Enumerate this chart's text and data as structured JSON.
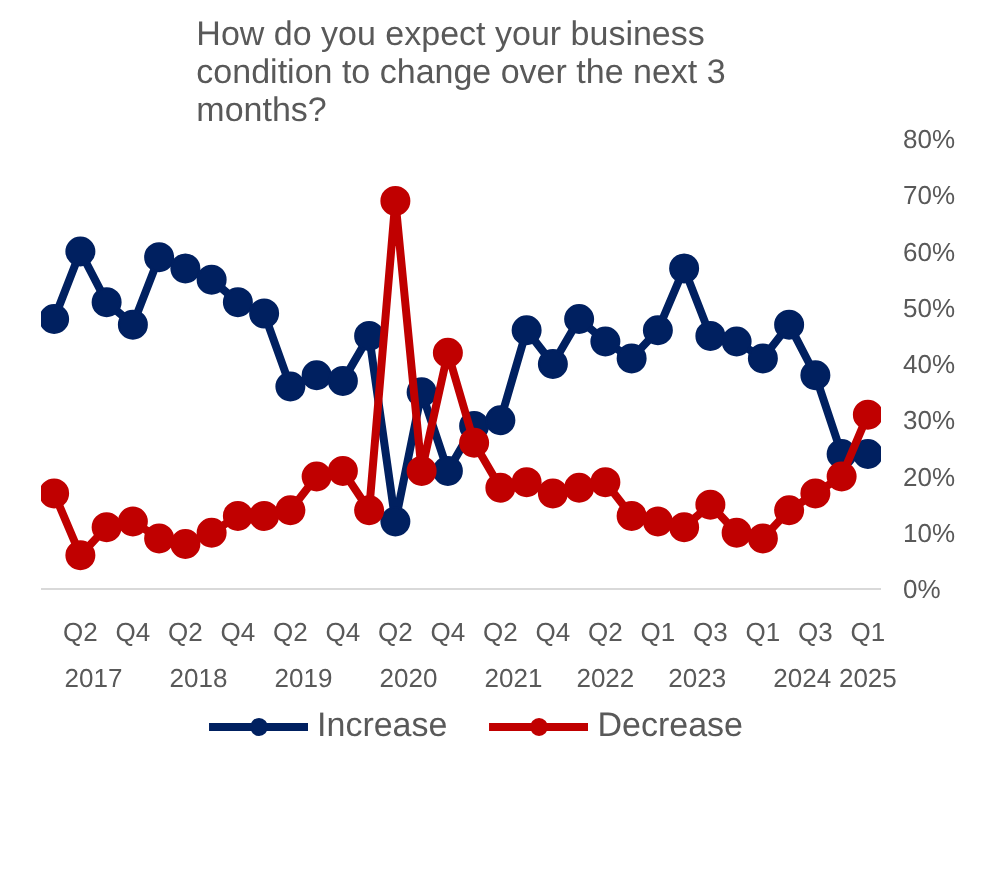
{
  "chart_data": {
    "type": "line",
    "title": "How do you expect your business condition to change over the next 3 months?",
    "categories": [
      null,
      "Q2",
      null,
      "Q4",
      null,
      "Q2",
      null,
      "Q4",
      null,
      "Q2",
      null,
      "Q4",
      null,
      "Q2",
      null,
      "Q4",
      null,
      "Q2",
      null,
      "Q4",
      null,
      "Q2",
      null,
      "Q1",
      null,
      "Q3",
      null,
      "Q1",
      null,
      "Q3",
      null,
      "Q1"
    ],
    "annotations": [
      "2017",
      "2018",
      "2019",
      "2020",
      "2021",
      "2022",
      "2023",
      "2024",
      "2025"
    ],
    "series": [
      {
        "name": "Increase",
        "color": "#002060",
        "values": [
          48,
          60,
          51,
          47,
          59,
          57,
          55,
          51,
          49,
          36,
          38,
          37,
          45,
          12,
          35,
          21,
          29,
          30,
          46,
          40,
          48,
          44,
          41,
          46,
          57,
          45,
          44,
          41,
          47,
          38,
          24,
          24
        ]
      },
      {
        "name": "Decrease",
        "color": "#c00000",
        "values": [
          17,
          6,
          11,
          12,
          9,
          8,
          10,
          13,
          13,
          14,
          20,
          21,
          14,
          69,
          21,
          42,
          26,
          18,
          19,
          17,
          18,
          19,
          13,
          12,
          11,
          15,
          10,
          9,
          14,
          17,
          20,
          31
        ]
      }
    ],
    "ylim": [
      0,
      80
    ],
    "yticks": [
      {
        "value": 0,
        "label": "0%"
      },
      {
        "value": 10,
        "label": "10%"
      },
      {
        "value": 20,
        "label": "20%"
      },
      {
        "value": 30,
        "label": "30%"
      },
      {
        "value": 40,
        "label": "40%"
      },
      {
        "value": 50,
        "label": "50%"
      },
      {
        "value": 60,
        "label": "60%"
      },
      {
        "value": 70,
        "label": "70%"
      },
      {
        "value": 80,
        "label": "80%"
      }
    ],
    "grid": false,
    "legend": "bottom",
    "marker": "circle",
    "line_style": "solid"
  }
}
